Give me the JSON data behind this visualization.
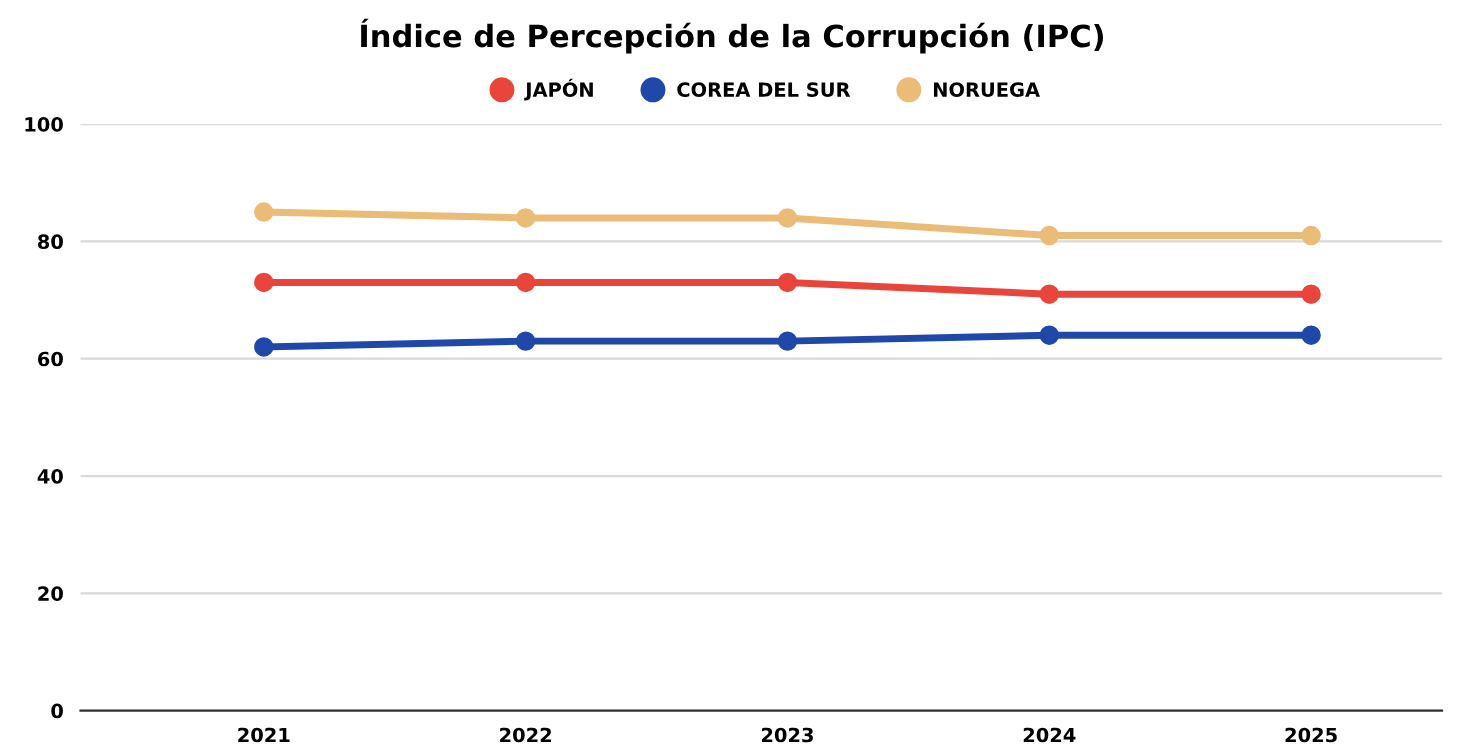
{
  "chart_data": {
    "type": "line",
    "title": "Índice de Percepción de la Corrupción (IPC)",
    "categories": [
      "2021",
      "2022",
      "2023",
      "2024",
      "2025"
    ],
    "series": [
      {
        "name": "JAPÓN",
        "color": "#e8453c",
        "values": [
          73,
          73,
          73,
          71,
          71
        ]
      },
      {
        "name": "COREA DEL SUR",
        "color": "#1f48a8",
        "values": [
          62,
          63,
          63,
          64,
          64
        ]
      },
      {
        "name": "NORUEGA",
        "color": "#ebbb78",
        "values": [
          85,
          84,
          84,
          81,
          81
        ]
      }
    ],
    "ylim": [
      0,
      100
    ],
    "yticks": [
      0,
      20,
      40,
      60,
      80,
      100
    ],
    "grid": "y",
    "legend": "top",
    "marker": "circle"
  }
}
